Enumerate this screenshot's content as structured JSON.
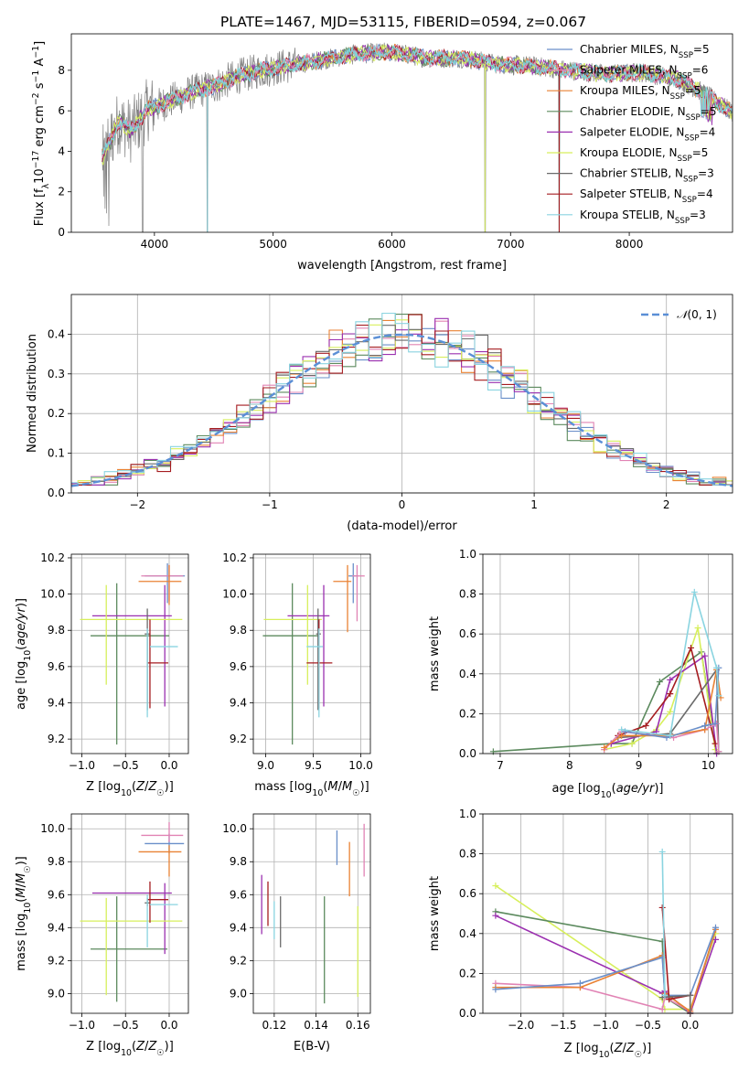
{
  "title": "PLATE=1467, MJD=53115, FIBERID=0594, z=0.067",
  "models": [
    {
      "name": "Chabrier MILES",
      "nssp": "5",
      "color": "#6a8fc9"
    },
    {
      "name": "Salpeter MILES",
      "nssp": "6",
      "color": "#e183b4"
    },
    {
      "name": "Kroupa MILES",
      "nssp": "5",
      "color": "#e98234"
    },
    {
      "name": "Chabrier ELODIE",
      "nssp": "5",
      "color": "#5c8a5e"
    },
    {
      "name": "Salpeter ELODIE",
      "nssp": "4",
      "color": "#9b30b0"
    },
    {
      "name": "Kroupa ELODIE",
      "nssp": "5",
      "color": "#d7ef5c"
    },
    {
      "name": "Chabrier STELIB",
      "nssp": "3",
      "color": "#6b6b6b"
    },
    {
      "name": "Salpeter STELIB",
      "nssp": "4",
      "color": "#a51c20"
    },
    {
      "name": "Kroupa STELIB",
      "nssp": "3",
      "color": "#8ad4e0"
    }
  ],
  "chart_data": [
    {
      "id": "spectrum",
      "type": "line",
      "xlabel": "wavelength [Angstrom, rest frame]",
      "ylabel_parts": [
        "Flux [f",
        "λ",
        "10",
        "−17",
        " erg cm",
        "−2",
        " s",
        "−1",
        " A",
        "−1",
        "]"
      ],
      "xlim": [
        3300,
        8870
      ],
      "ylim": [
        0,
        9.8
      ],
      "xticks": [
        4000,
        5000,
        6000,
        7000,
        8000
      ],
      "yticks": [
        0,
        2,
        4,
        6,
        8
      ],
      "continuum": {
        "x": [
          3550,
          3700,
          3800,
          3950,
          4100,
          4300,
          4500,
          4700,
          4900,
          5100,
          5400,
          5700,
          6000,
          6300,
          6600,
          6900,
          7200,
          7500,
          7800,
          8100,
          8400,
          8650,
          8870
        ],
        "y": [
          3.5,
          5.5,
          5.0,
          6.1,
          6.4,
          6.9,
          7.2,
          7.7,
          8.0,
          8.2,
          8.5,
          8.8,
          8.9,
          8.6,
          8.6,
          8.3,
          8.2,
          8.0,
          7.8,
          7.9,
          7.6,
          6.8,
          5.9
        ]
      },
      "data_color": "#7f7f7f",
      "model_color": "#7dd3d8",
      "dropouts": [
        3900,
        4447,
        6785,
        7410
      ]
    },
    {
      "id": "residuals",
      "type": "histogram",
      "xlabel": "(data-model)/error",
      "ylabel": "Normed distribution",
      "xlim": [
        -2.5,
        2.5
      ],
      "ylim": [
        0,
        0.5
      ],
      "xticks": [
        -2,
        -1,
        0,
        1,
        2
      ],
      "xticklabels": [
        "−2",
        "−1",
        "0",
        "1",
        "2"
      ],
      "yticks": [
        0.0,
        0.1,
        0.2,
        0.3,
        0.4
      ],
      "yticklabels": [
        "0.0",
        "0.1",
        "0.2",
        "0.3",
        "0.4"
      ],
      "bin_width": 0.1,
      "reference": {
        "name": "N(0,1)",
        "color": "#5b8fd6"
      }
    },
    {
      "id": "age-vs-Z",
      "type": "scatter",
      "xlabel": "Z [log10(Z/Z☉)]",
      "ylabel": "age  [log10(age/yr)]",
      "xlim": [
        -1.12,
        0.22
      ],
      "ylim": [
        9.12,
        10.22
      ],
      "xticks": [
        -1.0,
        -0.5,
        0.0
      ],
      "xticklabels": [
        "−1.0",
        "−0.5",
        "0.0"
      ],
      "yticks": [
        9.2,
        9.4,
        9.6,
        9.8,
        10.0,
        10.2
      ],
      "points": [
        {
          "m": 0,
          "x": -0.02,
          "xe": [
            -0.28,
            0.18
          ],
          "y": 10.1,
          "ye": [
            9.95,
            10.17
          ]
        },
        {
          "m": 1,
          "x": 0.0,
          "xe": [
            -0.32,
            0.16
          ],
          "y": 10.1,
          "ye": [
            9.96,
            10.16
          ]
        },
        {
          "m": 2,
          "x": 0.0,
          "xe": [
            -0.35,
            0.14
          ],
          "y": 10.07,
          "ye": [
            9.94,
            10.16
          ]
        },
        {
          "m": 3,
          "x": -0.6,
          "xe": [
            -0.9,
            0.0
          ],
          "y": 9.77,
          "ye": [
            9.17,
            10.06
          ]
        },
        {
          "m": 4,
          "x": -0.05,
          "xe": [
            -0.88,
            0.03
          ],
          "y": 9.88,
          "ye": [
            9.38,
            10.05
          ]
        },
        {
          "m": 5,
          "x": -0.72,
          "xe": [
            -1.02,
            0.15
          ],
          "y": 9.86,
          "ye": [
            9.5,
            10.05
          ]
        },
        {
          "m": 6,
          "x": -0.25,
          "xe": [
            -0.28,
            -0.22
          ],
          "y": 9.78,
          "ye": [
            9.36,
            9.92
          ]
        },
        {
          "m": 7,
          "x": -0.22,
          "xe": [
            -0.25,
            -0.01
          ],
          "y": 9.62,
          "ye": [
            9.37,
            9.86
          ]
        },
        {
          "m": 8,
          "x": -0.25,
          "xe": [
            -0.22,
            0.1
          ],
          "y": 9.71,
          "ye": [
            9.32,
            9.81
          ]
        }
      ]
    },
    {
      "id": "age-vs-mass",
      "type": "scatter",
      "xlabel": "mass [log10(M/M☉)]",
      "ylabel": "",
      "xlim": [
        8.87,
        10.1
      ],
      "ylim": [
        9.12,
        10.22
      ],
      "xticks": [
        9.0,
        9.5,
        10.0
      ],
      "xticklabels": [
        "9.0",
        "9.5",
        "10.0"
      ],
      "yticks": [
        9.2,
        9.4,
        9.6,
        9.8,
        10.0,
        10.2
      ],
      "points": [
        {
          "m": 0,
          "x": 9.92,
          "xe": [
            9.87,
            9.97
          ],
          "y": 10.1,
          "ye": [
            9.95,
            10.17
          ]
        },
        {
          "m": 1,
          "x": 9.96,
          "xe": [
            9.91,
            10.04
          ],
          "y": 10.1,
          "ye": [
            9.85,
            10.16
          ]
        },
        {
          "m": 2,
          "x": 9.86,
          "xe": [
            9.71,
            9.9
          ],
          "y": 10.07,
          "ye": [
            9.79,
            10.16
          ]
        },
        {
          "m": 3,
          "x": 9.28,
          "xe": [
            8.97,
            9.55
          ],
          "y": 9.77,
          "ye": [
            9.17,
            10.06
          ]
        },
        {
          "m": 4,
          "x": 9.61,
          "xe": [
            9.23,
            9.67
          ],
          "y": 9.88,
          "ye": [
            9.38,
            10.05
          ]
        },
        {
          "m": 5,
          "x": 9.44,
          "xe": [
            8.98,
            9.59
          ],
          "y": 9.86,
          "ye": [
            9.5,
            10.05
          ]
        },
        {
          "m": 6,
          "x": 9.55,
          "xe": [
            9.53,
            9.58
          ],
          "y": 9.78,
          "ye": [
            9.36,
            9.92
          ]
        },
        {
          "m": 7,
          "x": 9.56,
          "xe": [
            9.43,
            9.7
          ],
          "y": 9.62,
          "ye": [
            9.37,
            9.86
          ]
        },
        {
          "m": 8,
          "x": 9.56,
          "xe": [
            9.43,
            9.6
          ],
          "y": 9.71,
          "ye": [
            9.32,
            9.81
          ]
        }
      ]
    },
    {
      "id": "weight-vs-age",
      "type": "line",
      "xlabel": "age  [log10(age/yr)]",
      "ylabel": "mass weight",
      "xlim": [
        6.75,
        10.35
      ],
      "ylim": [
        0,
        1.0
      ],
      "xticks": [
        7,
        8,
        9,
        10
      ],
      "xticklabels": [
        "7",
        "8",
        "9",
        "10"
      ],
      "yticks": [
        0.0,
        0.2,
        0.4,
        0.6,
        0.8,
        1.0
      ],
      "yticklabels": [
        "0.0",
        "0.2",
        "0.4",
        "0.6",
        "0.8",
        "1.0"
      ],
      "series": [
        {
          "m": 3,
          "x": [
            6.9,
            8.6,
            8.9,
            9.3,
            9.9,
            10.12
          ],
          "y": [
            0.01,
            0.05,
            0.05,
            0.36,
            0.51,
            0.0
          ]
        },
        {
          "m": 5,
          "x": [
            8.5,
            8.9,
            9.25,
            9.45,
            9.85,
            10.1
          ],
          "y": [
            0.02,
            0.05,
            0.12,
            0.21,
            0.63,
            0.02
          ]
        },
        {
          "m": 4,
          "x": [
            8.6,
            9.25,
            9.45,
            9.95,
            10.12
          ],
          "y": [
            0.05,
            0.11,
            0.37,
            0.49,
            0.0
          ]
        },
        {
          "m": 7,
          "x": [
            8.7,
            9.1,
            9.45,
            9.75,
            10.1
          ],
          "y": [
            0.09,
            0.14,
            0.3,
            0.53,
            0.05
          ]
        },
        {
          "m": 6,
          "x": [
            8.7,
            9.45,
            10.12,
            10.15
          ],
          "y": [
            0.08,
            0.1,
            0.42,
            0.01
          ]
        },
        {
          "m": 1,
          "x": [
            8.5,
            8.75,
            9.5,
            9.95,
            10.12,
            10.15
          ],
          "y": [
            0.02,
            0.11,
            0.08,
            0.12,
            0.15,
            0.01
          ]
        },
        {
          "m": 2,
          "x": [
            8.5,
            8.75,
            9.45,
            9.95,
            10.12,
            10.18
          ],
          "y": [
            0.03,
            0.09,
            0.09,
            0.12,
            0.42,
            0.28
          ]
        },
        {
          "m": 0,
          "x": [
            8.8,
            9.4,
            9.95,
            10.1,
            10.15
          ],
          "y": [
            0.11,
            0.08,
            0.14,
            0.15,
            0.43
          ]
        },
        {
          "m": 8,
          "x": [
            8.75,
            9.45,
            9.8,
            10.12,
            10.15
          ],
          "y": [
            0.12,
            0.09,
            0.81,
            0.43,
            0.29
          ]
        }
      ]
    },
    {
      "id": "mass-vs-Z",
      "type": "scatter",
      "xlabel": "Z [log10(Z/Z☉)]",
      "ylabel": "mass [log10(M/M☉)]",
      "xlim": [
        -1.12,
        0.22
      ],
      "ylim": [
        8.88,
        10.09
      ],
      "xticks": [
        -1.0,
        -0.5,
        0.0
      ],
      "xticklabels": [
        "−1.0",
        "−0.5",
        "0.0"
      ],
      "yticks": [
        9.0,
        9.2,
        9.4,
        9.6,
        9.8,
        10.0
      ],
      "yticklabels": [
        "9.0",
        "9.2",
        "9.4",
        "9.6",
        "9.8",
        "10.0"
      ],
      "points": [
        {
          "m": 0,
          "x": 0.0,
          "xe": [
            -0.28,
            0.17
          ],
          "y": 9.91,
          "ye": [
            9.85,
            9.97
          ]
        },
        {
          "m": 1,
          "x": 0.0,
          "xe": [
            -0.32,
            0.16
          ],
          "y": 9.96,
          "ye": [
            9.92,
            10.04
          ]
        },
        {
          "m": 2,
          "x": 0.0,
          "xe": [
            -0.35,
            0.14
          ],
          "y": 9.86,
          "ye": [
            9.71,
            9.9
          ]
        },
        {
          "m": 3,
          "x": -0.6,
          "xe": [
            -0.9,
            -0.02
          ],
          "y": 9.27,
          "ye": [
            8.95,
            9.59
          ]
        },
        {
          "m": 4,
          "x": -0.05,
          "xe": [
            -0.88,
            0.03
          ],
          "y": 9.61,
          "ye": [
            9.24,
            9.67
          ]
        },
        {
          "m": 5,
          "x": -0.72,
          "xe": [
            -1.02,
            0.15
          ],
          "y": 9.44,
          "ye": [
            8.99,
            9.58
          ]
        },
        {
          "m": 6,
          "x": -0.25,
          "xe": [
            -0.28,
            -0.22
          ],
          "y": 9.55,
          "ye": [
            9.53,
            9.58
          ]
        },
        {
          "m": 7,
          "x": -0.22,
          "xe": [
            -0.25,
            -0.01
          ],
          "y": 9.57,
          "ye": [
            9.43,
            9.68
          ]
        },
        {
          "m": 8,
          "x": -0.25,
          "xe": [
            -0.22,
            0.1
          ],
          "y": 9.54,
          "ye": [
            9.28,
            9.6
          ]
        }
      ]
    },
    {
      "id": "mass-vs-EBV",
      "type": "errorbar",
      "xlabel": "E(B-V)",
      "ylabel": "",
      "xlim": [
        0.11,
        0.166
      ],
      "ylim": [
        8.88,
        10.09
      ],
      "xticks": [
        0.12,
        0.14,
        0.16
      ],
      "xticklabels": [
        "0.12",
        "0.14",
        "0.16"
      ],
      "yticks": [
        9.0,
        9.2,
        9.4,
        9.6,
        9.8,
        10.0
      ],
      "yticklabels": [
        "9.0",
        "9.2",
        "9.4",
        "9.6",
        "9.8",
        "10.0"
      ],
      "points": [
        {
          "m": 0,
          "x": 0.15,
          "ye": [
            9.78,
            9.99
          ]
        },
        {
          "m": 1,
          "x": 0.163,
          "ye": [
            9.71,
            10.03
          ]
        },
        {
          "m": 2,
          "x": 0.156,
          "ye": [
            9.59,
            9.92
          ]
        },
        {
          "m": 3,
          "x": 0.144,
          "ye": [
            8.94,
            9.59
          ]
        },
        {
          "m": 4,
          "x": 0.114,
          "ye": [
            9.36,
            9.72
          ]
        },
        {
          "m": 5,
          "x": 0.16,
          "ye": [
            8.98,
            9.53
          ]
        },
        {
          "m": 6,
          "x": 0.123,
          "ye": [
            9.28,
            9.59
          ]
        },
        {
          "m": 7,
          "x": 0.117,
          "ye": [
            9.41,
            9.68
          ]
        },
        {
          "m": 8,
          "x": 0.12,
          "ye": [
            9.33,
            9.56
          ]
        }
      ]
    },
    {
      "id": "weight-vs-Z",
      "type": "line",
      "xlabel": "Z [log10(Z/Z☉)]",
      "ylabel": "mass weight",
      "xlim": [
        -2.45,
        0.5
      ],
      "ylim": [
        0,
        1.0
      ],
      "xticks": [
        -2.0,
        -1.5,
        -1.0,
        -0.5,
        0.0
      ],
      "xticklabels": [
        "−2.0",
        "−1.5",
        "−1.0",
        "−0.5",
        "0.0"
      ],
      "yticks": [
        0.0,
        0.2,
        0.4,
        0.6,
        0.8,
        1.0
      ],
      "yticklabels": [
        "0.0",
        "0.2",
        "0.4",
        "0.6",
        "0.8",
        "1.0"
      ],
      "series": [
        {
          "m": 5,
          "x": [
            -2.3,
            -0.33,
            -0.3,
            0.0,
            0.3
          ],
          "y": [
            0.64,
            0.07,
            0.02,
            0.02,
            0.4
          ]
        },
        {
          "m": 3,
          "x": [
            -2.3,
            -0.33,
            -0.3,
            0.0,
            0.3
          ],
          "y": [
            0.51,
            0.36,
            0.08,
            0.0,
            0.42
          ]
        },
        {
          "m": 4,
          "x": [
            -2.3,
            -0.33,
            -0.3,
            0.0,
            0.3
          ],
          "y": [
            0.49,
            0.1,
            0.11,
            0.0,
            0.37
          ]
        },
        {
          "m": 1,
          "x": [
            -2.3,
            -1.3,
            -0.33,
            -0.3,
            0.0,
            0.3
          ],
          "y": [
            0.15,
            0.13,
            0.02,
            0.08,
            0.01,
            0.42
          ]
        },
        {
          "m": 2,
          "x": [
            -2.3,
            -1.3,
            -0.33,
            -0.3,
            0.0,
            0.3
          ],
          "y": [
            0.13,
            0.13,
            0.29,
            0.1,
            0.01,
            0.42
          ]
        },
        {
          "m": 0,
          "x": [
            -2.3,
            -1.3,
            -0.33,
            -0.3,
            0.0,
            0.3
          ],
          "y": [
            0.12,
            0.15,
            0.28,
            0.09,
            0.09,
            0.43
          ]
        },
        {
          "m": 7,
          "x": [
            -0.33,
            -0.25,
            0.0,
            0.0
          ],
          "y": [
            0.53,
            0.07,
            0.09,
            0.0
          ]
        },
        {
          "m": 6,
          "x": [
            -0.33,
            0.0,
            0.0
          ],
          "y": [
            0.08,
            0.09,
            0.0
          ]
        },
        {
          "m": 8,
          "x": [
            -0.33,
            -0.3
          ],
          "y": [
            0.81,
            0.09
          ]
        }
      ]
    }
  ]
}
